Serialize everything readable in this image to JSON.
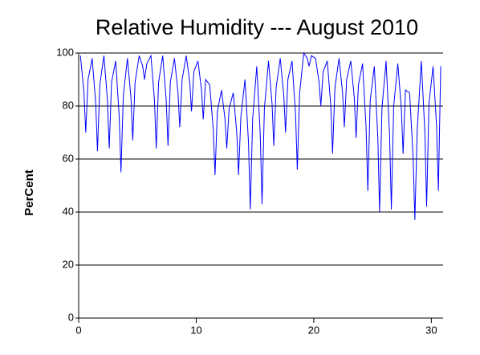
{
  "chart_data": {
    "type": "line",
    "title": "Relative Humidity --- August 2010",
    "y_label": "PerCent",
    "color": "#0000ff",
    "xlim": [
      0,
      31
    ],
    "xticks": [
      0,
      10,
      20,
      30
    ],
    "ylim": [
      0,
      100
    ],
    "yticks": [
      0,
      20,
      40,
      60,
      80,
      100
    ],
    "grid": true,
    "x": [
      0.15,
      0.45,
      0.6,
      0.8,
      1.15,
      1.45,
      1.6,
      1.8,
      2.15,
      2.45,
      2.6,
      2.8,
      3.15,
      3.45,
      3.6,
      3.8,
      4.15,
      4.45,
      4.6,
      4.8,
      5.15,
      5.45,
      5.6,
      5.8,
      6.15,
      6.45,
      6.6,
      6.8,
      7.15,
      7.45,
      7.6,
      7.8,
      8.15,
      8.45,
      8.6,
      8.8,
      9.15,
      9.45,
      9.6,
      9.8,
      10.15,
      10.45,
      10.6,
      10.8,
      11.15,
      11.45,
      11.6,
      11.8,
      12.15,
      12.45,
      12.6,
      12.8,
      13.15,
      13.45,
      13.6,
      13.8,
      14.15,
      14.45,
      14.6,
      14.8,
      15.15,
      15.45,
      15.6,
      15.8,
      16.15,
      16.45,
      16.6,
      16.8,
      17.15,
      17.45,
      17.6,
      17.8,
      18.15,
      18.45,
      18.6,
      18.8,
      19.15,
      19.45,
      19.6,
      19.8,
      20.15,
      20.45,
      20.6,
      20.8,
      21.15,
      21.45,
      21.6,
      21.8,
      22.15,
      22.45,
      22.6,
      22.8,
      23.15,
      23.45,
      23.6,
      23.8,
      24.15,
      24.45,
      24.6,
      24.8,
      25.15,
      25.45,
      25.6,
      25.8,
      26.15,
      26.45,
      26.6,
      26.8,
      27.15,
      27.45,
      27.6,
      27.8,
      28.15,
      28.45,
      28.6,
      28.8,
      29.15,
      29.45,
      29.6,
      29.8,
      30.15,
      30.45,
      30.6,
      30.8
    ],
    "values": [
      99,
      85,
      70,
      90,
      98,
      81,
      63,
      88,
      99,
      82,
      64,
      89,
      97,
      76,
      55,
      84,
      98,
      83,
      67,
      89,
      99,
      95,
      90,
      96,
      99,
      82,
      64,
      89,
      99,
      82,
      65,
      89,
      98,
      85,
      72,
      90,
      99,
      89,
      78,
      93,
      97,
      86,
      75,
      90,
      88,
      71,
      54,
      78,
      86,
      75,
      64,
      79,
      85,
      70,
      54,
      76,
      90,
      66,
      41,
      75,
      95,
      69,
      43,
      79,
      97,
      81,
      65,
      87,
      98,
      84,
      70,
      90,
      97,
      77,
      56,
      85,
      100,
      98,
      95,
      99,
      98,
      89,
      80,
      93,
      97,
      80,
      62,
      87,
      98,
      85,
      72,
      90,
      97,
      83,
      68,
      88,
      96,
      72,
      48,
      82,
      95,
      68,
      40,
      79,
      97,
      69,
      41,
      80,
      96,
      79,
      62,
      86,
      85,
      61,
      37,
      71,
      97,
      70,
      42,
      81,
      95,
      72,
      48,
      95
    ]
  }
}
